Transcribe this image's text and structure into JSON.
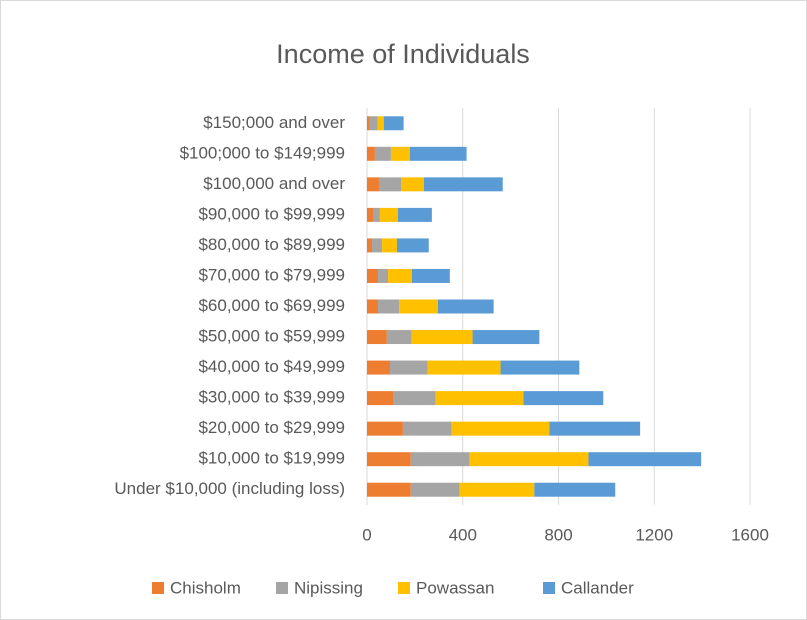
{
  "chart_data": {
    "type": "stacked-bar-horizontal",
    "title": "Income of Individuals",
    "categories": [
      "Under $10,000 (including loss)",
      "$10,000 to $19,999",
      "$20,000 to $29,999",
      "$30,000 to $39,999",
      "$40,000 to $49,999",
      "$50,000 to $59,999",
      "$60,000 to $69,999",
      "$70,000 to $79,999",
      "$80,000 to $89,999",
      "$90,000 to $99,999",
      "$100,000 and over",
      "$100;000 to $149;999",
      "$150;000 and over"
    ],
    "series": [
      {
        "name": "Chisholm",
        "color": "#ed7d31",
        "values": [
          183,
          183,
          150,
          112,
          96,
          83,
          46,
          46,
          21,
          25,
          50,
          33,
          12
        ]
      },
      {
        "name": "Nipissing",
        "color": "#a5a5a5",
        "values": [
          204,
          246,
          204,
          175,
          158,
          104,
          88,
          42,
          42,
          29,
          92,
          67,
          33
        ]
      },
      {
        "name": "Powassan",
        "color": "#ffc000",
        "values": [
          312,
          496,
          408,
          367,
          304,
          254,
          162,
          100,
          62,
          75,
          96,
          79,
          25
        ]
      },
      {
        "name": "Callander",
        "color": "#5b9bd5",
        "values": [
          338,
          471,
          379,
          333,
          329,
          279,
          233,
          158,
          133,
          142,
          329,
          237,
          83
        ]
      }
    ],
    "xlim": [
      0,
      1600
    ],
    "xticks": [
      0,
      400,
      800,
      1200,
      1600
    ],
    "grid": true,
    "legend": "bottom"
  }
}
